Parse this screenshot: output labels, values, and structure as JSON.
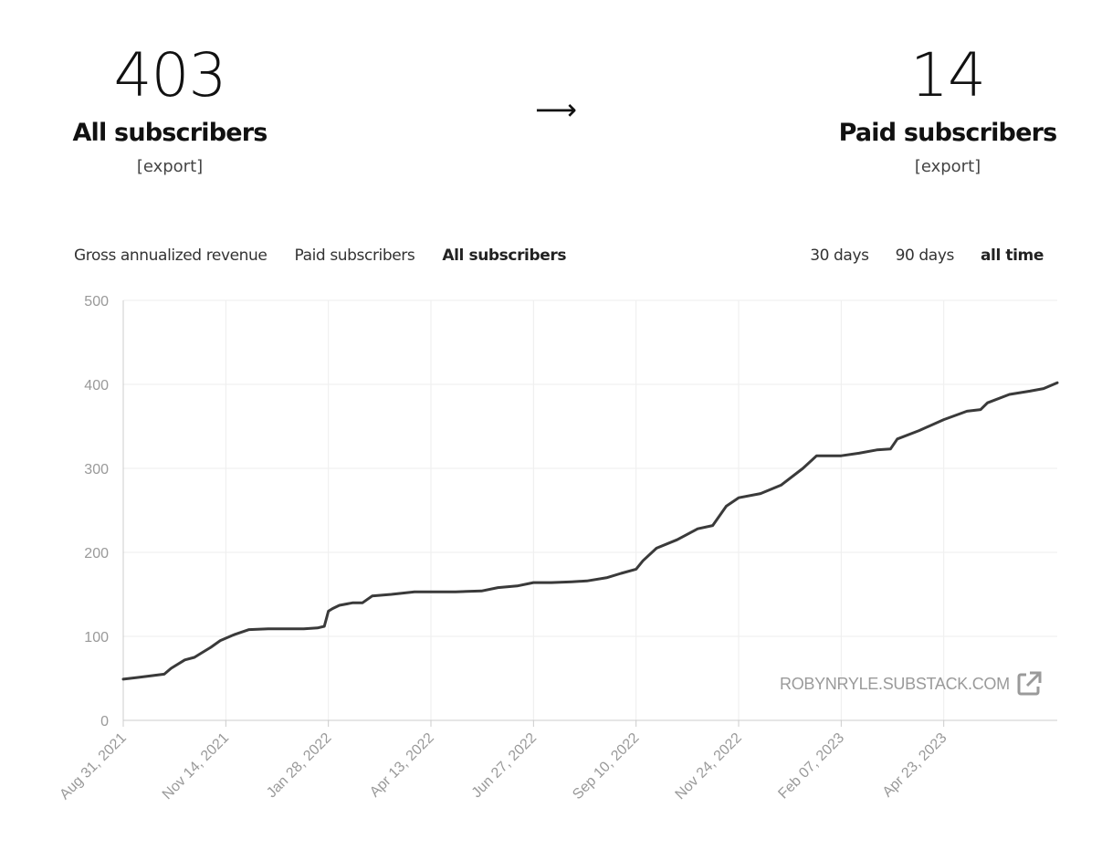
{
  "stats": {
    "all": {
      "value": "403",
      "label": "All subscribers",
      "export": "[export]"
    },
    "arrow": "⟶",
    "paid": {
      "value": "14",
      "label": "Paid subscribers",
      "export": "[export]"
    }
  },
  "tabs": [
    {
      "label": "Gross annualized revenue",
      "active": false
    },
    {
      "label": "Paid subscribers",
      "active": false
    },
    {
      "label": "All subscribers",
      "active": true
    }
  ],
  "ranges": [
    {
      "label": "30 days",
      "active": false
    },
    {
      "label": "90 days",
      "active": false
    },
    {
      "label": "all time",
      "active": true
    }
  ],
  "watermark": {
    "text": "ROBYNRYLE.SUBSTACK.COM",
    "icon": "external-link-icon"
  },
  "colors": {
    "line": "#3a3a3a",
    "grid": "#eeeeee",
    "axis": "#999999"
  },
  "chart_data": {
    "type": "line",
    "ylim": [
      0,
      500
    ],
    "y_ticks": [
      0,
      100,
      200,
      300,
      400,
      500
    ],
    "x_tick_labels": [
      "Aug 31, 2021",
      "Nov 14, 2021",
      "Jan 28, 2022",
      "Apr 13, 2022",
      "Jun 27, 2022",
      "Sep 10, 2022",
      "Nov 24, 2022",
      "Feb 07, 2023",
      "Apr 23, 2023"
    ],
    "grid": true,
    "series": [
      {
        "x": [
          "2021-08-31",
          "2021-09-10",
          "2021-09-20",
          "2021-09-30",
          "2021-10-05",
          "2021-10-15",
          "2021-10-22",
          "2021-10-27",
          "2021-11-03",
          "2021-11-10",
          "2021-11-20",
          "2021-12-01",
          "2021-12-15",
          "2021-12-30",
          "2022-01-10",
          "2022-01-20",
          "2022-01-25",
          "2022-01-28",
          "2022-01-31",
          "2022-02-05",
          "2022-02-15",
          "2022-02-22",
          "2022-03-01",
          "2022-03-15",
          "2022-04-01",
          "2022-04-13",
          "2022-05-01",
          "2022-05-20",
          "2022-06-01",
          "2022-06-15",
          "2022-06-27",
          "2022-07-10",
          "2022-07-25",
          "2022-08-05",
          "2022-08-20",
          "2022-08-30",
          "2022-09-10",
          "2022-09-15",
          "2022-09-25",
          "2022-10-10",
          "2022-10-25",
          "2022-11-05",
          "2022-11-15",
          "2022-11-24",
          "2022-12-10",
          "2022-12-25",
          "2023-01-10",
          "2023-01-20",
          "2023-02-01",
          "2023-02-07",
          "2023-02-20",
          "2023-03-05",
          "2023-03-15",
          "2023-03-20",
          "2023-04-05",
          "2023-04-23",
          "2023-05-10",
          "2023-05-20",
          "2023-05-25",
          "2023-06-10",
          "2023-06-25",
          "2023-07-05",
          "2023-07-15"
        ],
        "y": [
          49,
          51,
          53,
          55,
          62,
          72,
          75,
          80,
          87,
          95,
          102,
          108,
          109,
          109,
          109,
          110,
          112,
          130,
          133,
          137,
          140,
          140,
          148,
          150,
          153,
          153,
          153,
          154,
          158,
          160,
          164,
          164,
          165,
          166,
          170,
          175,
          180,
          190,
          205,
          215,
          228,
          232,
          255,
          265,
          270,
          280,
          300,
          315,
          315,
          315,
          318,
          322,
          323,
          335,
          345,
          358,
          368,
          370,
          378,
          388,
          392,
          395,
          402
        ]
      }
    ]
  }
}
